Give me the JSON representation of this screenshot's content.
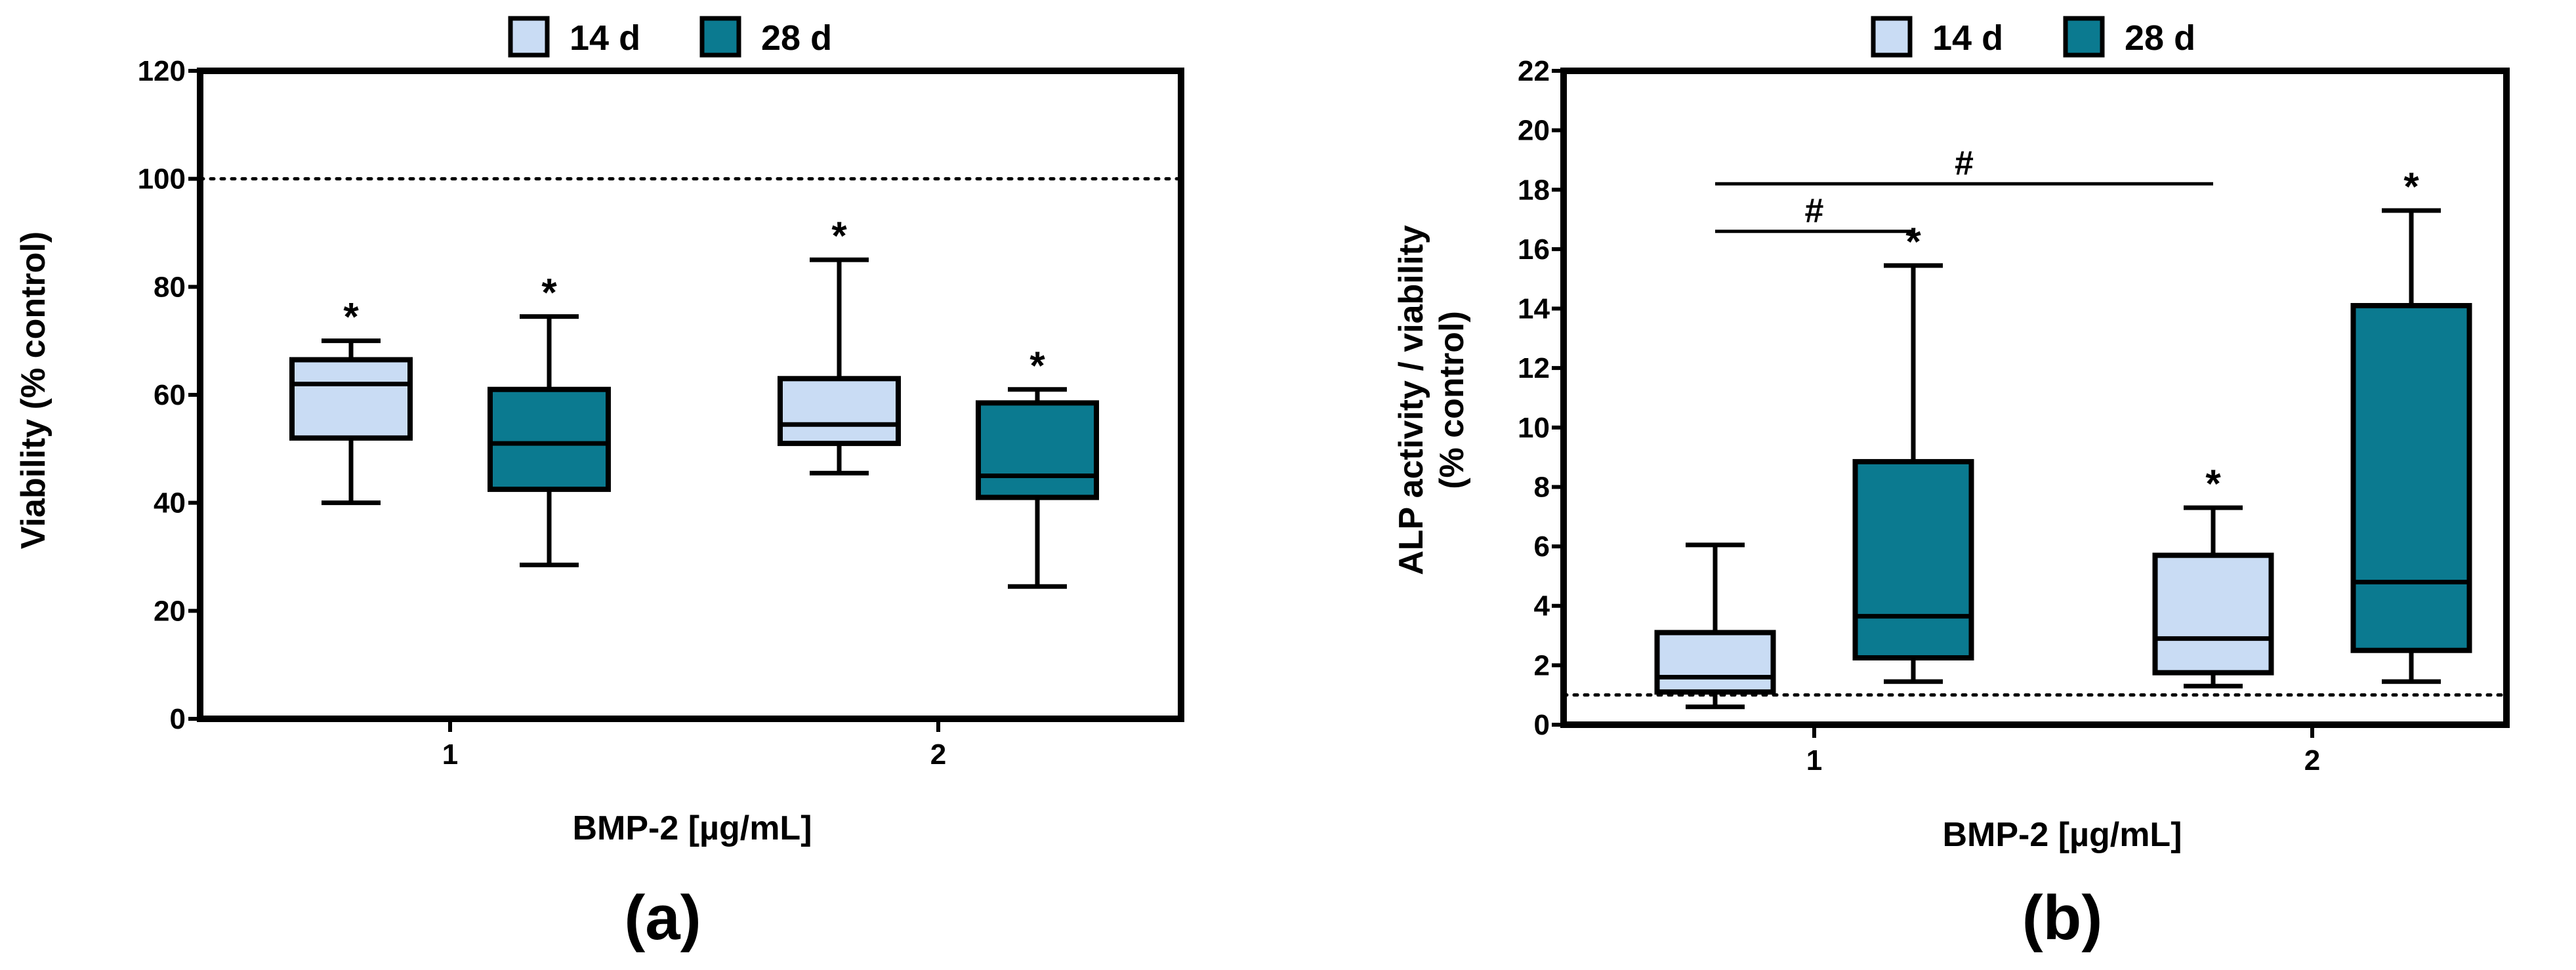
{
  "colors": {
    "light_fill": "#c9dcf4",
    "dark_fill": "#0b7a90",
    "stroke": "#000000"
  },
  "chart_data": [
    {
      "type": "box",
      "panel_label": "(a)",
      "ylabel": "Viability (% control)",
      "xlabel": "BMP-2 [µg/mL]",
      "ylim": [
        0,
        120
      ],
      "yticks": [
        "0",
        "20",
        "40",
        "60",
        "80",
        "100",
        "120"
      ],
      "categories": [
        "1",
        "2"
      ],
      "reference_line": 100,
      "legend": [
        "14 d",
        "28 d"
      ],
      "series": [
        {
          "name": "14 d",
          "color_key": "light",
          "boxes": [
            {
              "category": "1",
              "min": 40,
              "q1": 52,
              "median": 62,
              "q3": 66.5,
              "max": 70,
              "annotation": "*"
            },
            {
              "category": "2",
              "min": 45.5,
              "q1": 51,
              "median": 54.5,
              "q3": 63,
              "max": 85,
              "annotation": "*"
            }
          ]
        },
        {
          "name": "28 d",
          "color_key": "dark",
          "boxes": [
            {
              "category": "1",
              "min": 28.5,
              "q1": 42.5,
              "median": 51,
              "q3": 61,
              "max": 74.5,
              "annotation": "*"
            },
            {
              "category": "2",
              "min": 24.5,
              "q1": 41,
              "median": 45,
              "q3": 58.5,
              "max": 61,
              "annotation": "*"
            }
          ]
        }
      ],
      "significance": []
    },
    {
      "type": "box",
      "panel_label": "(b)",
      "ylabel_lines": [
        "ALP activity / viability",
        "(% control)"
      ],
      "xlabel": "BMP-2 [µg/mL]",
      "ylim": [
        0,
        22
      ],
      "yticks": [
        "0",
        "2",
        "4",
        "6",
        "8",
        "10",
        "12",
        "14",
        "16",
        "18",
        "20",
        "22"
      ],
      "categories": [
        "1",
        "2"
      ],
      "reference_line": 1,
      "legend": [
        "14 d",
        "28 d"
      ],
      "series": [
        {
          "name": "14 d",
          "color_key": "light",
          "boxes": [
            {
              "category": "1",
              "min": 0.6,
              "q1": 1.1,
              "median": 1.6,
              "q3": 3.1,
              "max": 6.05,
              "annotation": ""
            },
            {
              "category": "2",
              "min": 1.3,
              "q1": 1.75,
              "median": 2.9,
              "q3": 5.7,
              "max": 7.3,
              "annotation": "*"
            }
          ]
        },
        {
          "name": "28 d",
          "color_key": "dark",
          "boxes": [
            {
              "category": "1",
              "min": 1.45,
              "q1": 2.25,
              "median": 3.65,
              "q3": 8.85,
              "max": 15.45,
              "annotation": "*"
            },
            {
              "category": "2",
              "min": 1.45,
              "q1": 2.5,
              "median": 4.8,
              "q3": 14.1,
              "max": 17.3,
              "annotation": "*"
            }
          ]
        }
      ],
      "significance": [
        {
          "from": "1 / 14 d",
          "to": "1 / 28 d",
          "y": 16.6,
          "label": "#"
        },
        {
          "from": "1 / 14 d",
          "to": "2 / 14 d",
          "y": 18.2,
          "label": "#"
        }
      ]
    }
  ]
}
